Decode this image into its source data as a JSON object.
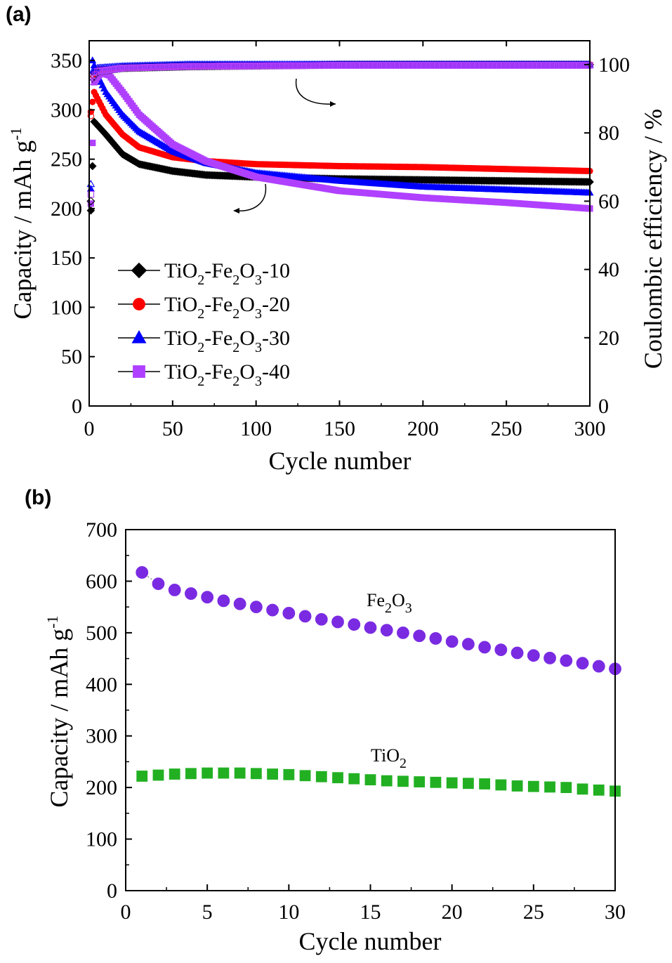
{
  "chart_data": [
    {
      "panel": "(a)",
      "type": "scatter",
      "xlabel": "Cycle number",
      "ylabel": "Capacity / mAh g",
      "ylabel_sup": "-1",
      "y2label": "Coulombic efficiency / %",
      "xlim": [
        0,
        300
      ],
      "ylim": [
        0,
        370
      ],
      "y2lim": [
        0,
        107
      ],
      "xticks": [
        "0",
        "50",
        "100",
        "150",
        "200",
        "250",
        "300"
      ],
      "yticks": [
        "0",
        "50",
        "100",
        "150",
        "200",
        "250",
        "300",
        "350"
      ],
      "y2ticks": [
        "0",
        "20",
        "40",
        "60",
        "80",
        "100"
      ],
      "legend_position": "lower-left",
      "series": [
        {
          "name": "TiO2-Fe2O3-10",
          "label_parts": [
            "TiO",
            "2",
            "-Fe",
            "2",
            "O",
            "3",
            "-10"
          ],
          "color": "#000000",
          "marker": "diamond",
          "capacity_points": [
            [
              1,
              198
            ],
            [
              3,
              288
            ],
            [
              10,
              275
            ],
            [
              20,
              255
            ],
            [
              30,
              245
            ],
            [
              50,
              238
            ],
            [
              70,
              234
            ],
            [
              100,
              232
            ],
            [
              150,
              230
            ],
            [
              200,
              229
            ],
            [
              250,
              228
            ],
            [
              300,
              227
            ]
          ],
          "efficiency_points": [
            [
              1,
              60
            ],
            [
              2,
              96
            ],
            [
              5,
              98
            ],
            [
              20,
              99
            ],
            [
              60,
              99.5
            ],
            [
              150,
              100
            ],
            [
              300,
              100
            ]
          ]
        },
        {
          "name": "TiO2-Fe2O3-20",
          "label_parts": [
            "TiO",
            "2",
            "-Fe",
            "2",
            "O",
            "3",
            "-20"
          ],
          "color": "#ff0000",
          "marker": "circle",
          "capacity_points": [
            [
              1,
              298
            ],
            [
              3,
              318
            ],
            [
              10,
              295
            ],
            [
              20,
              275
            ],
            [
              30,
              262
            ],
            [
              50,
              252
            ],
            [
              70,
              248
            ],
            [
              100,
              245
            ],
            [
              150,
              243
            ],
            [
              200,
              242
            ],
            [
              250,
              240
            ],
            [
              300,
              238
            ]
          ],
          "efficiency_points": [
            [
              1,
              85
            ],
            [
              2,
              97
            ],
            [
              5,
              98.5
            ],
            [
              20,
              99
            ],
            [
              60,
              99.5
            ],
            [
              150,
              100
            ],
            [
              300,
              100
            ]
          ]
        },
        {
          "name": "TiO2-Fe2O3-30",
          "label_parts": [
            "TiO",
            "2",
            "-Fe",
            "2",
            "O",
            "3",
            "-30"
          ],
          "color": "#0000ff",
          "marker": "triangle",
          "capacity_points": [
            [
              1,
              220
            ],
            [
              2,
              350
            ],
            [
              5,
              335
            ],
            [
              10,
              318
            ],
            [
              20,
              295
            ],
            [
              30,
              278
            ],
            [
              50,
              258
            ],
            [
              70,
              246
            ],
            [
              100,
              236
            ],
            [
              150,
              228
            ],
            [
              200,
              222
            ],
            [
              250,
              219
            ],
            [
              300,
              216
            ]
          ],
          "efficiency_points": [
            [
              1,
              65
            ],
            [
              2,
              98
            ],
            [
              5,
              99
            ],
            [
              20,
              99.5
            ],
            [
              60,
              100
            ],
            [
              150,
              100
            ],
            [
              300,
              100
            ]
          ]
        },
        {
          "name": "TiO2-Fe2O3-40",
          "label_parts": [
            "TiO",
            "2",
            "-Fe",
            "2",
            "O",
            "3",
            "-40"
          ],
          "color": "#b040ff",
          "marker": "square",
          "capacity_points": [
            [
              1,
              205
            ],
            [
              3,
              328
            ],
            [
              7,
              338
            ],
            [
              12,
              335
            ],
            [
              20,
              318
            ],
            [
              30,
              295
            ],
            [
              50,
              265
            ],
            [
              70,
              248
            ],
            [
              100,
              232
            ],
            [
              150,
              218
            ],
            [
              200,
              211
            ],
            [
              250,
              206
            ],
            [
              300,
              200
            ]
          ],
          "efficiency_points": [
            [
              1,
              62
            ],
            [
              2,
              95
            ],
            [
              5,
              98
            ],
            [
              20,
              99
            ],
            [
              60,
              99.5
            ],
            [
              150,
              99.8
            ],
            [
              300,
              99.8
            ]
          ]
        }
      ]
    },
    {
      "panel": "(b)",
      "type": "scatter",
      "xlabel": "Cycle number",
      "ylabel": "Capacity / mAh g",
      "ylabel_sup": "-1",
      "xlim": [
        0,
        30
      ],
      "ylim": [
        0,
        700
      ],
      "xticks": [
        "0",
        "5",
        "10",
        "15",
        "20",
        "25",
        "30"
      ],
      "yticks": [
        "0",
        "100",
        "200",
        "300",
        "400",
        "500",
        "600",
        "700"
      ],
      "series": [
        {
          "name": "Fe2O3",
          "label_parts": [
            "Fe",
            "2",
            "O",
            "3"
          ],
          "color": "#7a2be2",
          "marker": "circle",
          "x": [
            1,
            2,
            3,
            4,
            5,
            6,
            7,
            8,
            9,
            10,
            11,
            12,
            13,
            14,
            15,
            16,
            17,
            18,
            19,
            20,
            21,
            22,
            23,
            24,
            25,
            26,
            27,
            28,
            29,
            30
          ],
          "y": [
            617,
            595,
            583,
            576,
            569,
            562,
            556,
            550,
            544,
            538,
            532,
            526,
            521,
            516,
            510,
            505,
            500,
            494,
            489,
            483,
            478,
            472,
            467,
            461,
            456,
            451,
            446,
            441,
            435,
            430
          ]
        },
        {
          "name": "TiO2",
          "label_parts": [
            "TiO",
            "2"
          ],
          "color": "#22b022",
          "marker": "square",
          "x": [
            1,
            2,
            3,
            4,
            5,
            6,
            7,
            8,
            9,
            10,
            11,
            12,
            13,
            14,
            15,
            16,
            17,
            18,
            19,
            20,
            21,
            22,
            23,
            24,
            25,
            26,
            27,
            28,
            29,
            30
          ],
          "y": [
            222,
            224,
            226,
            227,
            228,
            228,
            228,
            227,
            226,
            225,
            223,
            221,
            219,
            217,
            215,
            213,
            212,
            211,
            210,
            209,
            208,
            207,
            205,
            203,
            202,
            201,
            200,
            197,
            195,
            193
          ]
        }
      ]
    }
  ]
}
